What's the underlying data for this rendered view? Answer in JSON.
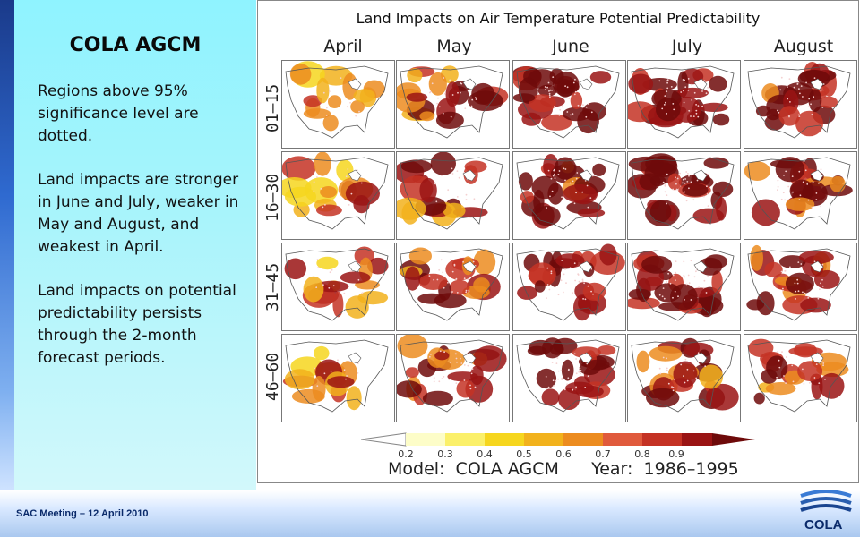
{
  "sidebar": {
    "title": "COLA AGCM",
    "paragraphs": [
      "Regions above 95% significance level are dotted.",
      "Land impacts are stronger in June and July, weaker in May and August, and weakest in April.",
      "Land impacts on potential predictability persists through the 2-month forecast periods."
    ]
  },
  "figure": {
    "title": "Land Impacts on Air Temperature Potential Predictability",
    "months": [
      "April",
      "May",
      "June",
      "July",
      "August"
    ],
    "row_labels": [
      "01–15",
      "16–30",
      "31–45",
      "46–60"
    ],
    "colorbar": {
      "ticks": [
        "0.2",
        "0.3",
        "0.4",
        "0.5",
        "0.6",
        "0.7",
        "0.8",
        "0.9"
      ],
      "colors": [
        "#fdfdc8",
        "#fbf06a",
        "#f6d61e",
        "#f2b21c",
        "#ec8c20",
        "#e05a3c",
        "#c43224",
        "#9a1414",
        "#6e0a0a"
      ]
    },
    "footer": {
      "model_label": "Model:",
      "model": "COLA AGCM",
      "year_label": "Year:",
      "year": "1986–1995"
    }
  },
  "footer": {
    "meeting": "SAC Meeting – 12 April 2010",
    "logo": "COLA"
  }
}
